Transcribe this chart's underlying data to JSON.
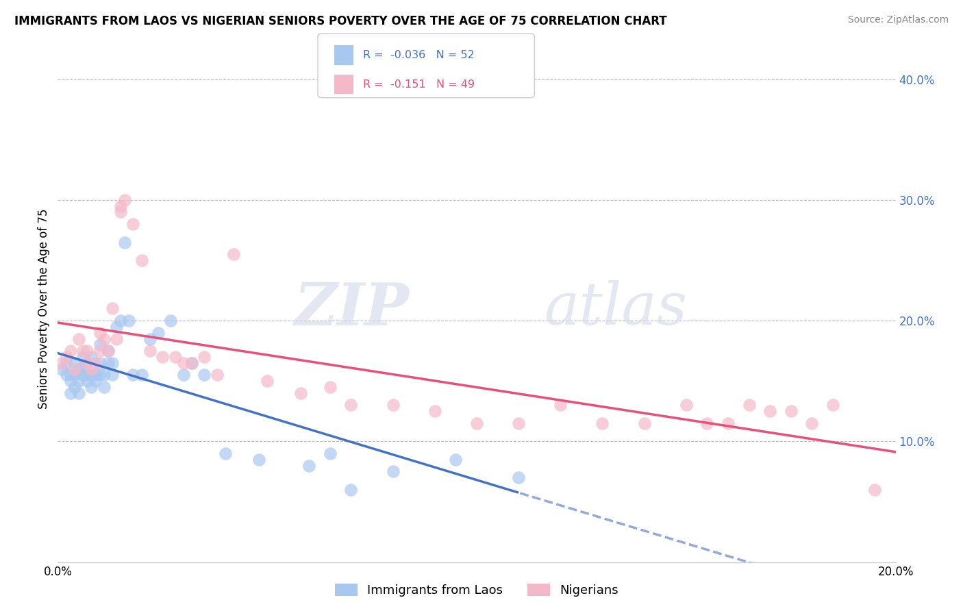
{
  "title": "IMMIGRANTS FROM LAOS VS NIGERIAN SENIORS POVERTY OVER THE AGE OF 75 CORRELATION CHART",
  "source": "Source: ZipAtlas.com",
  "ylabel": "Seniors Poverty Over the Age of 75",
  "xlim": [
    0.0,
    0.2
  ],
  "ylim": [
    0.0,
    0.42
  ],
  "blue_color": "#a8c8f0",
  "pink_color": "#f5b8c8",
  "blue_line_color": "#4472c4",
  "pink_line_color": "#e8507a",
  "watermark_zip": "ZIP",
  "watermark_atlas": "atlas",
  "laos_x": [
    0.001,
    0.002,
    0.002,
    0.003,
    0.003,
    0.003,
    0.004,
    0.004,
    0.004,
    0.005,
    0.005,
    0.005,
    0.006,
    0.006,
    0.006,
    0.007,
    0.007,
    0.007,
    0.008,
    0.008,
    0.008,
    0.009,
    0.009,
    0.01,
    0.01,
    0.01,
    0.011,
    0.011,
    0.012,
    0.012,
    0.013,
    0.013,
    0.014,
    0.015,
    0.016,
    0.017,
    0.018,
    0.02,
    0.022,
    0.024,
    0.027,
    0.03,
    0.032,
    0.035,
    0.04,
    0.048,
    0.06,
    0.065,
    0.07,
    0.08,
    0.095,
    0.11
  ],
  "laos_y": [
    0.16,
    0.155,
    0.165,
    0.14,
    0.15,
    0.155,
    0.145,
    0.155,
    0.165,
    0.14,
    0.15,
    0.16,
    0.155,
    0.16,
    0.17,
    0.15,
    0.155,
    0.165,
    0.145,
    0.155,
    0.17,
    0.15,
    0.155,
    0.155,
    0.165,
    0.18,
    0.145,
    0.155,
    0.165,
    0.175,
    0.155,
    0.165,
    0.195,
    0.2,
    0.265,
    0.2,
    0.155,
    0.155,
    0.185,
    0.19,
    0.2,
    0.155,
    0.165,
    0.155,
    0.09,
    0.085,
    0.08,
    0.09,
    0.06,
    0.075,
    0.085,
    0.07
  ],
  "nigeria_x": [
    0.001,
    0.002,
    0.003,
    0.004,
    0.005,
    0.006,
    0.007,
    0.007,
    0.008,
    0.009,
    0.01,
    0.01,
    0.011,
    0.012,
    0.013,
    0.014,
    0.015,
    0.015,
    0.016,
    0.018,
    0.02,
    0.022,
    0.025,
    0.028,
    0.03,
    0.032,
    0.035,
    0.038,
    0.042,
    0.05,
    0.058,
    0.065,
    0.07,
    0.08,
    0.09,
    0.1,
    0.11,
    0.12,
    0.13,
    0.14,
    0.15,
    0.155,
    0.16,
    0.165,
    0.17,
    0.175,
    0.18,
    0.185,
    0.195
  ],
  "nigeria_y": [
    0.165,
    0.17,
    0.175,
    0.16,
    0.185,
    0.175,
    0.165,
    0.175,
    0.16,
    0.165,
    0.175,
    0.19,
    0.185,
    0.175,
    0.21,
    0.185,
    0.29,
    0.295,
    0.3,
    0.28,
    0.25,
    0.175,
    0.17,
    0.17,
    0.165,
    0.165,
    0.17,
    0.155,
    0.255,
    0.15,
    0.14,
    0.145,
    0.13,
    0.13,
    0.125,
    0.115,
    0.115,
    0.13,
    0.115,
    0.115,
    0.13,
    0.115,
    0.115,
    0.13,
    0.125,
    0.125,
    0.115,
    0.13,
    0.06
  ]
}
